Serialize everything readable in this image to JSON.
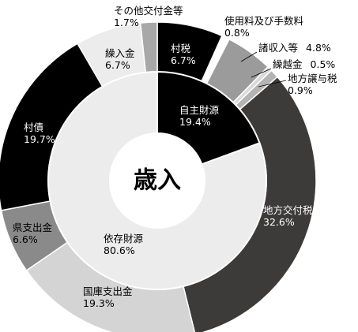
{
  "chart_data": {
    "type": "pie",
    "title": "歳入",
    "inner_ring": [
      {
        "id": "jishu",
        "label": "自主財源",
        "value": 19.4,
        "value_text": "19.4%",
        "color": "#000000",
        "text_color": "#ffffff"
      },
      {
        "id": "izon",
        "label": "依存財源",
        "value": 80.6,
        "value_text": "80.6%",
        "color": "#ececec",
        "text_color": "#000000"
      }
    ],
    "outer_ring": [
      {
        "id": "sonzei",
        "label": "村税",
        "value": 6.7,
        "value_text": "6.7%",
        "color": "#000000"
      },
      {
        "id": "shiyoryo",
        "label": "使用料及び手数料",
        "value": 0.8,
        "value_text": "0.8%",
        "color": "#ffffff"
      },
      {
        "id": "shoshunyu",
        "label": "諸収入等",
        "value": 4.8,
        "value_text": "4.8%",
        "color": "#9b9b9b"
      },
      {
        "id": "kurikoshi",
        "label": "繰越金",
        "value": 0.5,
        "value_text": "0.5%",
        "color": "#d9d9d9"
      },
      {
        "id": "jouyozei",
        "label": "地方譲与税",
        "value": 0.9,
        "value_text": "0.9%",
        "color": "#b4b4b4"
      },
      {
        "id": "kofuzei",
        "label": "地方交付税",
        "value": 32.6,
        "value_text": "32.6%",
        "color": "#3d3a3a"
      },
      {
        "id": "kokko",
        "label": "国庫支出金",
        "value": 19.3,
        "value_text": "19.3%",
        "color": "#d4d4d4"
      },
      {
        "id": "kenshishutsu",
        "label": "県支出金",
        "value": 6.6,
        "value_text": "6.6%",
        "color": "#8a8a8a"
      },
      {
        "id": "sonsai",
        "label": "村債",
        "value": 19.7,
        "value_text": "19.7%",
        "color": "#000000"
      },
      {
        "id": "kurinyu",
        "label": "繰入金",
        "value": 6.7,
        "value_text": "6.7%",
        "color": "#ececec"
      },
      {
        "id": "sonotakofu",
        "label": "その他交付金等",
        "value": 1.7,
        "value_text": "1.7%",
        "color": "#a8a8a8"
      }
    ]
  }
}
